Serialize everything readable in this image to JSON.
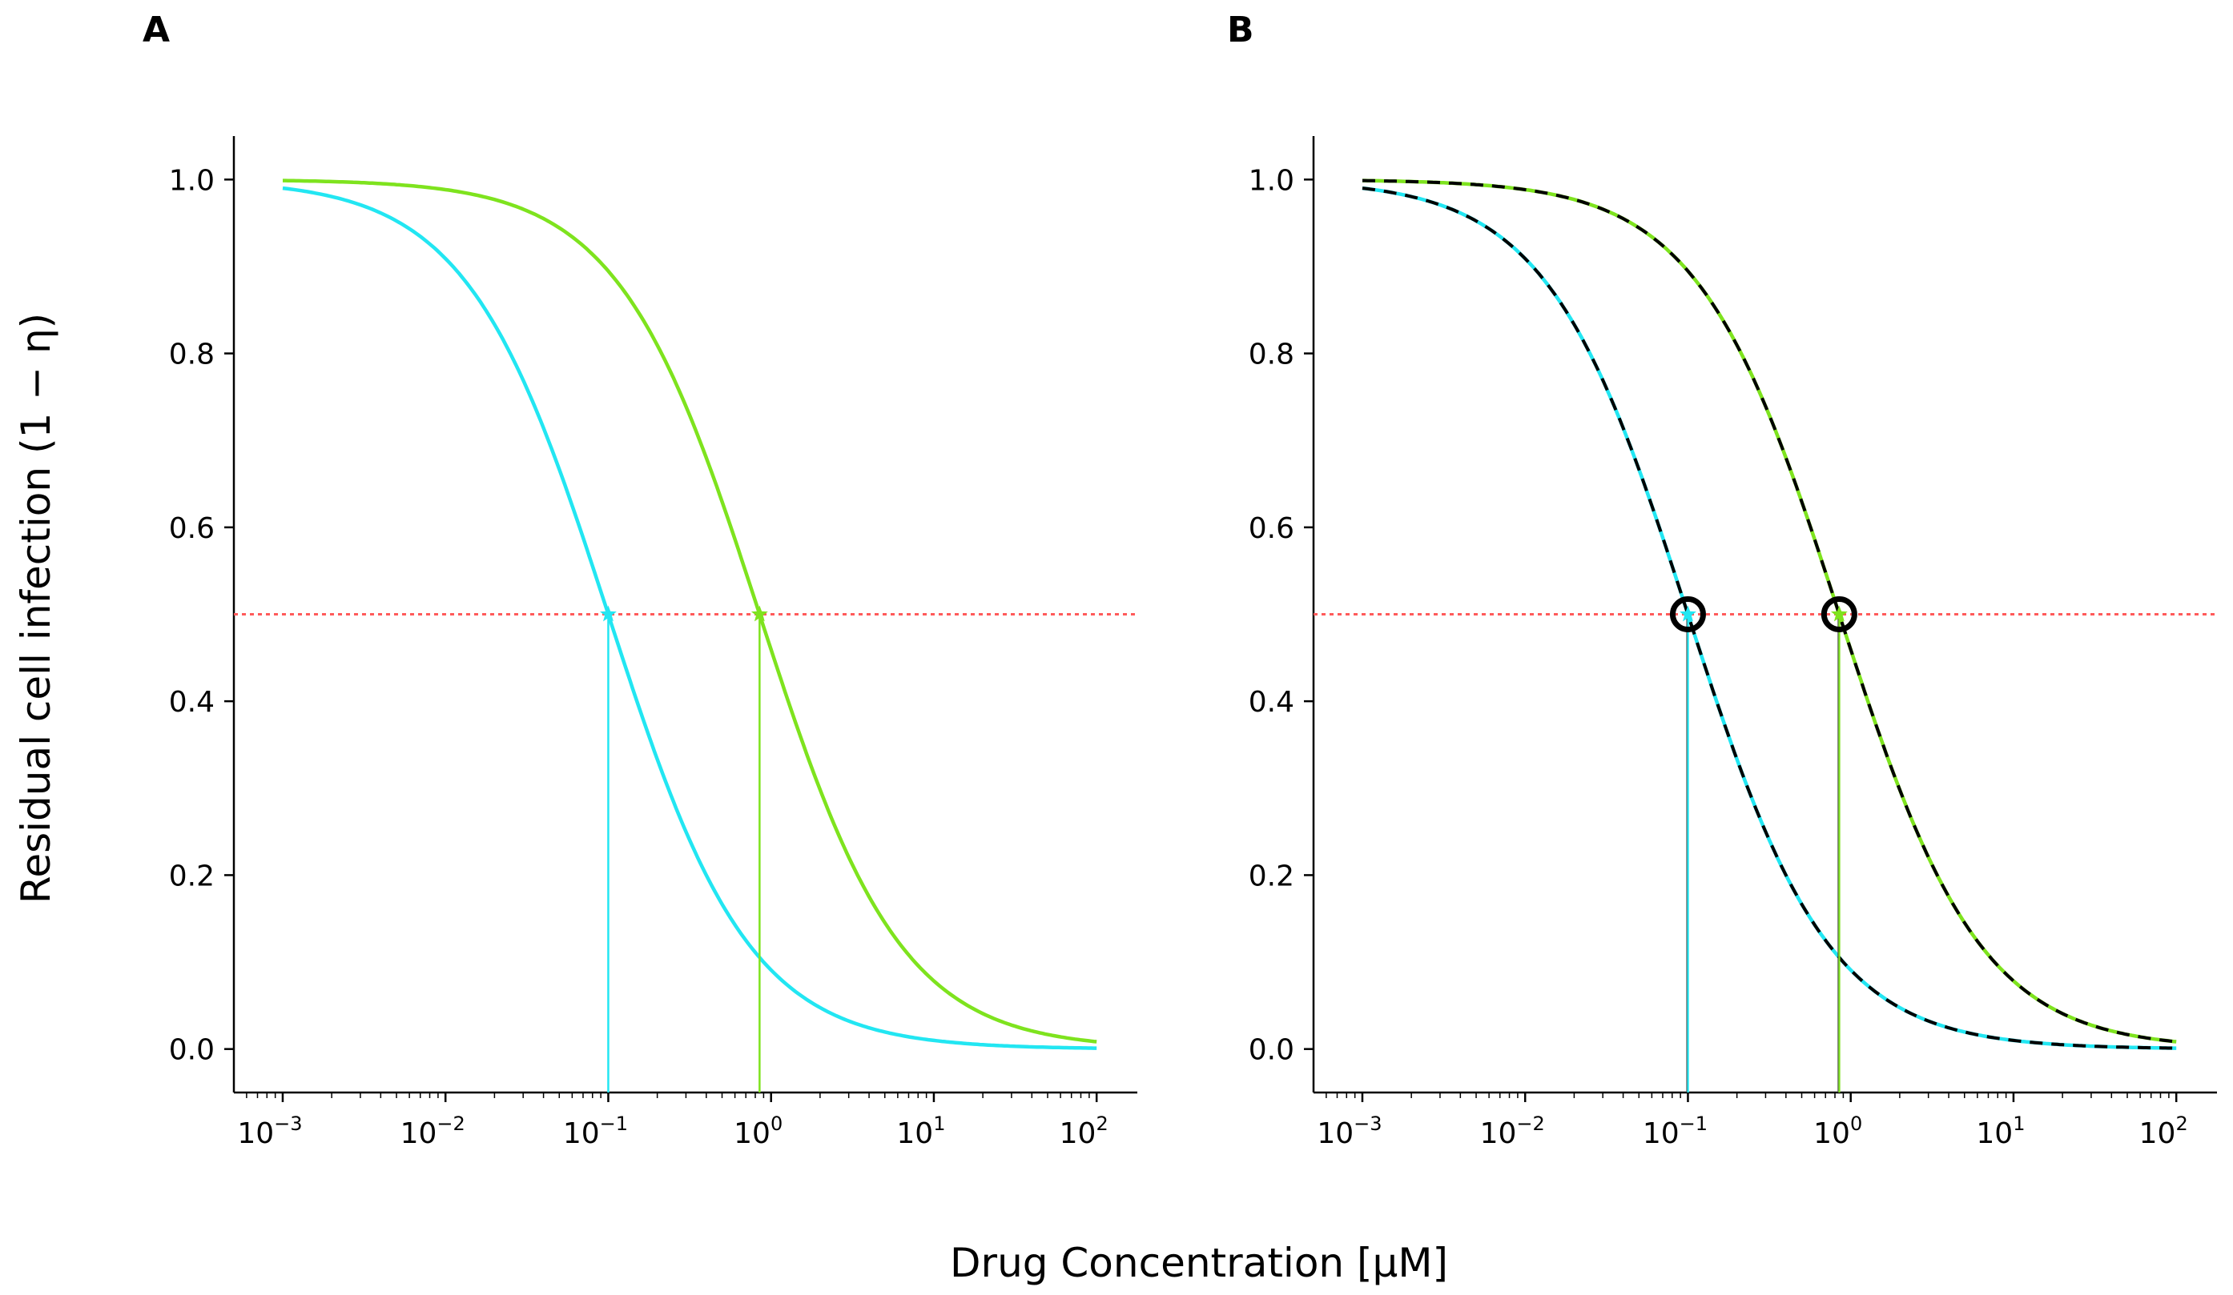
{
  "chart_data": {
    "type": "line",
    "xlabel": "Drug Concentration [μM]",
    "ylabel": "Residual cell infection (1 − η)",
    "xscale": "log",
    "xlim_log10": [
      -3.3,
      2.25
    ],
    "ylim": [
      -0.05,
      1.05
    ],
    "xticks": [
      {
        "base": "10",
        "exp": "−3",
        "log10": -3
      },
      {
        "base": "10",
        "exp": "−2",
        "log10": -2
      },
      {
        "base": "10",
        "exp": "−1",
        "log10": -1
      },
      {
        "base": "10",
        "exp": "0",
        "log10": 0
      },
      {
        "base": "10",
        "exp": "1",
        "log10": 1
      },
      {
        "base": "10",
        "exp": "2",
        "log10": 2
      }
    ],
    "yticks": [
      {
        "label": "0.0",
        "value": 0.0
      },
      {
        "label": "0.2",
        "value": 0.2
      },
      {
        "label": "0.4",
        "value": 0.4
      },
      {
        "label": "0.6",
        "value": 0.6
      },
      {
        "label": "0.8",
        "value": 0.8
      },
      {
        "label": "1.0",
        "value": 1.0
      }
    ],
    "threshold": {
      "y": 0.5,
      "color": "#ff5a5a",
      "style": "dotted"
    },
    "series": [
      {
        "name": "cyan",
        "color": "#22e6f2",
        "ic50": 0.1,
        "hill": 1.0,
        "x_range": [
          0.001,
          100
        ]
      },
      {
        "name": "green",
        "color": "#7ee31e",
        "ic50": 0.85,
        "hill": 1.0,
        "x_range": [
          0.001,
          100
        ]
      }
    ],
    "panels": [
      {
        "letter": "A",
        "fit_overlay": false,
        "ic50_markers": false
      },
      {
        "letter": "B",
        "fit_overlay": true,
        "fit_color": "#000000",
        "ic50_markers": true
      }
    ]
  }
}
